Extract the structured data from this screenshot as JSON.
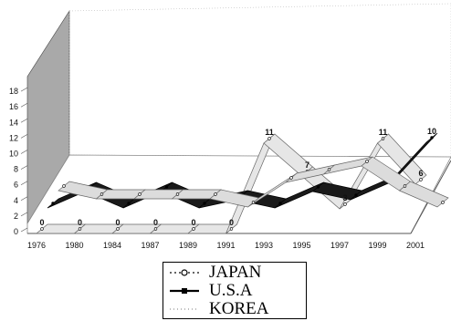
{
  "chart_data": {
    "type": "line",
    "subtype": "3d-ribbon",
    "title": "",
    "xlabel": "",
    "ylabel": "",
    "ylim": [
      0,
      18
    ],
    "yticks": [
      0,
      2,
      4,
      6,
      8,
      10,
      12,
      14,
      16,
      18
    ],
    "grid": false,
    "legend_position": "bottom",
    "x": [
      "1976",
      "1980",
      "1984",
      "1987",
      "1989",
      "1991",
      "1993",
      "1995",
      "1997",
      "1999",
      "2001"
    ],
    "series": [
      {
        "name": "JAPAN",
        "color": "#dcdcdc",
        "values": [
          3,
          2,
          2,
          2,
          2,
          1,
          4,
          5,
          6,
          3,
          1
        ]
      },
      {
        "name": "U.S.A",
        "color": "#1a1a1a",
        "values": [
          2,
          4,
          2,
          4,
          2,
          3,
          2,
          4,
          3,
          5,
          10
        ]
      },
      {
        "name": "KOREA",
        "color": "#e6e6e6",
        "values": [
          0,
          0,
          0,
          0,
          0,
          0,
          11,
          7,
          3,
          11,
          6
        ]
      }
    ],
    "data_labels": [
      {
        "series": "KOREA",
        "labels": [
          "0",
          "0",
          "0",
          "0",
          "0",
          "0",
          "11",
          "7",
          "3",
          "11",
          "6"
        ]
      },
      {
        "series": "U.S.A",
        "labels": [
          "",
          "",
          "",
          "",
          "",
          "",
          "",
          "",
          "",
          "",
          "10"
        ]
      }
    ]
  },
  "legend": {
    "items": [
      {
        "label": "JAPAN",
        "style": "dotted-circle"
      },
      {
        "label": "U.S.A",
        "style": "solid-square"
      },
      {
        "label": "KOREA",
        "style": "dotted"
      }
    ]
  },
  "colors": {
    "wall": "#a9a9a9",
    "floor": "#ffffff",
    "axis": "#555555"
  }
}
